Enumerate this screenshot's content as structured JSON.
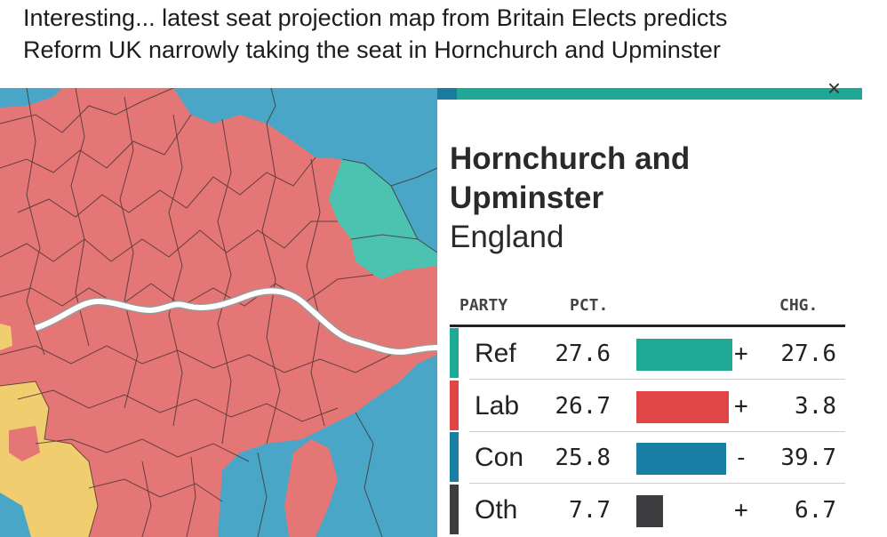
{
  "caption": {
    "line1": "Interesting... latest seat projection map from Britain Elects predicts",
    "line2": "Reform UK narrowly taking the seat in Hornchurch and Upminster"
  },
  "colors": {
    "reform": "#1faa98",
    "labour": "#e04646",
    "conservative": "#1a7fa5",
    "other": "#3d3d40",
    "map_labour": "#e47676",
    "map_conservative": "#4aa6c6",
    "map_reform": "#4cc2b0",
    "map_libdem": "#f0cd6e",
    "river": "#ffffff"
  },
  "panel": {
    "seat_line1": "Hornchurch and",
    "seat_line2": "Upminster",
    "region": "England",
    "headers": {
      "party": "PARTY",
      "pct": "PCT.",
      "chg": "CHG."
    },
    "rows": [
      {
        "party": "Ref",
        "pct": "27.6",
        "pct_value": 27.6,
        "sign": "+",
        "chg": "27.6",
        "color": "#1faa98"
      },
      {
        "party": "Lab",
        "pct": "26.7",
        "pct_value": 26.7,
        "sign": "+",
        "chg": "3.8",
        "color": "#e04646"
      },
      {
        "party": "Con",
        "pct": "25.8",
        "pct_value": 25.8,
        "sign": "-",
        "chg": "39.7",
        "color": "#1a7fa5"
      },
      {
        "party": "Oth",
        "pct": "7.7",
        "pct_value": 7.7,
        "sign": "+",
        "chg": "6.7",
        "color": "#3d3d40"
      }
    ]
  }
}
